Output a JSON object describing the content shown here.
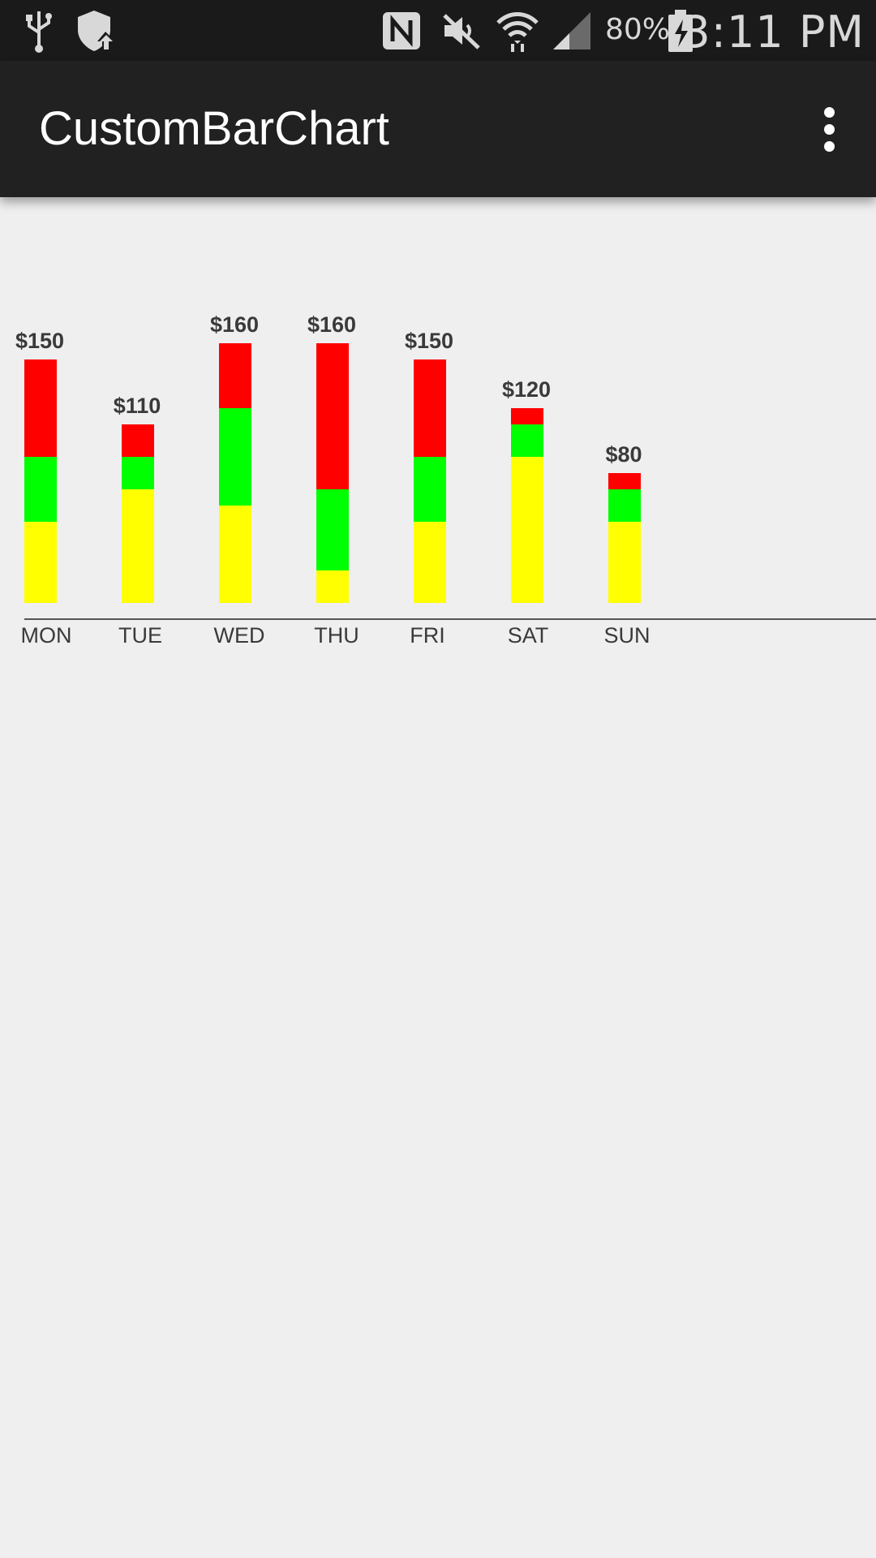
{
  "status_bar": {
    "battery_percent": "80%",
    "time": "3:11 PM",
    "icons": [
      "usb-icon",
      "shield-upload-icon",
      "nfc-icon",
      "mute-icon",
      "wifi-icon",
      "signal-icon",
      "battery-charging-icon"
    ]
  },
  "app_bar": {
    "title": "CustomBarChart",
    "overflow_icon": "more-vert-icon"
  },
  "colors": {
    "segment_bottom": "#ffff00",
    "segment_middle": "#00ff00",
    "segment_top": "#ff0000",
    "label_text": "#3a3a3a",
    "axis_line": "#555555"
  },
  "chart_data": {
    "type": "bar",
    "stacked": true,
    "categories": [
      "MON",
      "TUE",
      "WED",
      "THU",
      "FRI",
      "SAT",
      "SUN"
    ],
    "totals": [
      "$150",
      "$110",
      "$160",
      "$160",
      "$150",
      "$120",
      "$80"
    ],
    "series": [
      {
        "values": [
          50,
          70,
          60,
          20,
          50,
          90,
          50
        ]
      },
      {
        "values": [
          40,
          20,
          60,
          50,
          40,
          20,
          20
        ]
      },
      {
        "values": [
          60,
          20,
          40,
          90,
          60,
          10,
          10
        ]
      }
    ],
    "ylim": [
      0,
      160
    ],
    "grid": false
  }
}
